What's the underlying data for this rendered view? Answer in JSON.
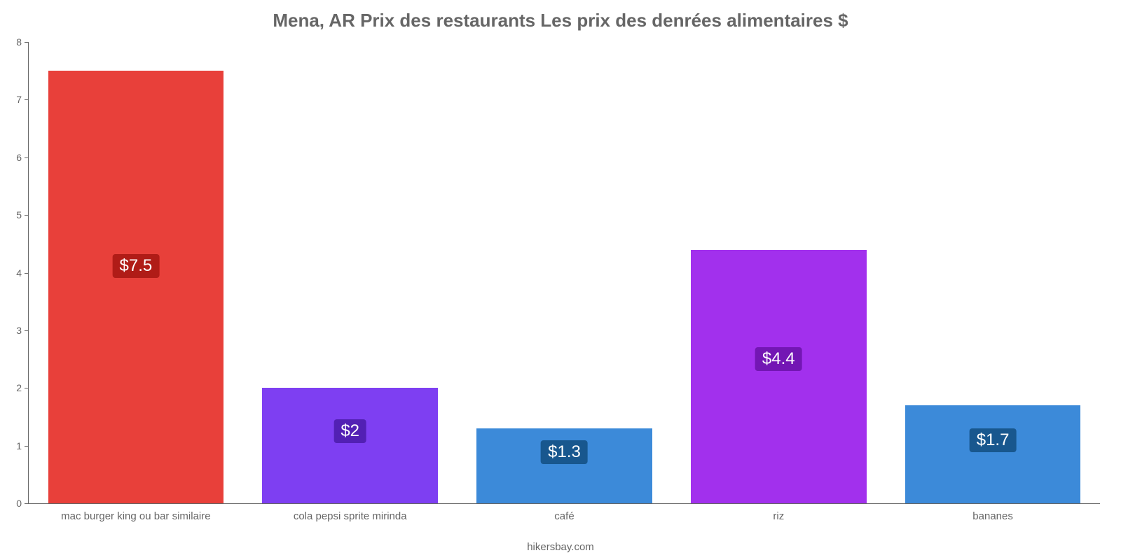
{
  "chart": {
    "type": "bar",
    "title": "Mena, AR Prix des restaurants Les prix des denrées alimentaires $",
    "title_fontsize": 26,
    "title_color": "#666666",
    "credit": "hikersbay.com",
    "credit_fontsize": 15,
    "credit_color": "#666666",
    "background_color": "#ffffff",
    "axis_color": "#666666",
    "tick_label_color": "#666666",
    "tick_label_fontsize": 14,
    "cat_label_fontsize": 15,
    "ylim": [
      0,
      8
    ],
    "yticks": [
      0,
      1,
      2,
      3,
      4,
      5,
      6,
      7,
      8
    ],
    "bar_width_pct": 82,
    "badge_fontsize": 24,
    "badge_text_color": "#ffffff",
    "categories": [
      "mac burger king ou bar similaire",
      "cola pepsi sprite mirinda",
      "café",
      "riz",
      "bananes"
    ],
    "values": [
      7.5,
      2,
      1.3,
      4.4,
      1.7
    ],
    "value_labels": [
      "$7.5",
      "$2",
      "$1.3",
      "$4.4",
      "$1.7"
    ],
    "bar_colors": [
      "#e8403a",
      "#7e3ff2",
      "#3c8ad9",
      "#a230ed",
      "#3c8ad9"
    ],
    "badge_colors": [
      "#b01c17",
      "#5220b4",
      "#18578e",
      "#7316b4",
      "#18578e"
    ]
  }
}
